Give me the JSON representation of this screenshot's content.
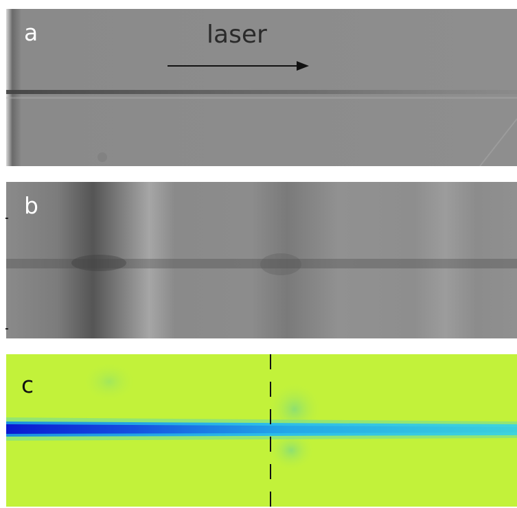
{
  "panels": {
    "a": {
      "label": "a",
      "annotation": "laser"
    },
    "b": {
      "label": "b"
    },
    "c": {
      "label": "c"
    }
  },
  "colors": {
    "panel_a_bg": "#8c8c8c",
    "panel_b_bg": "#909090",
    "panel_c_bg": "#c2f23a",
    "beam_core": "#0a1fd6",
    "beam_outer": "#26c8f0",
    "arrow": "#111111"
  }
}
